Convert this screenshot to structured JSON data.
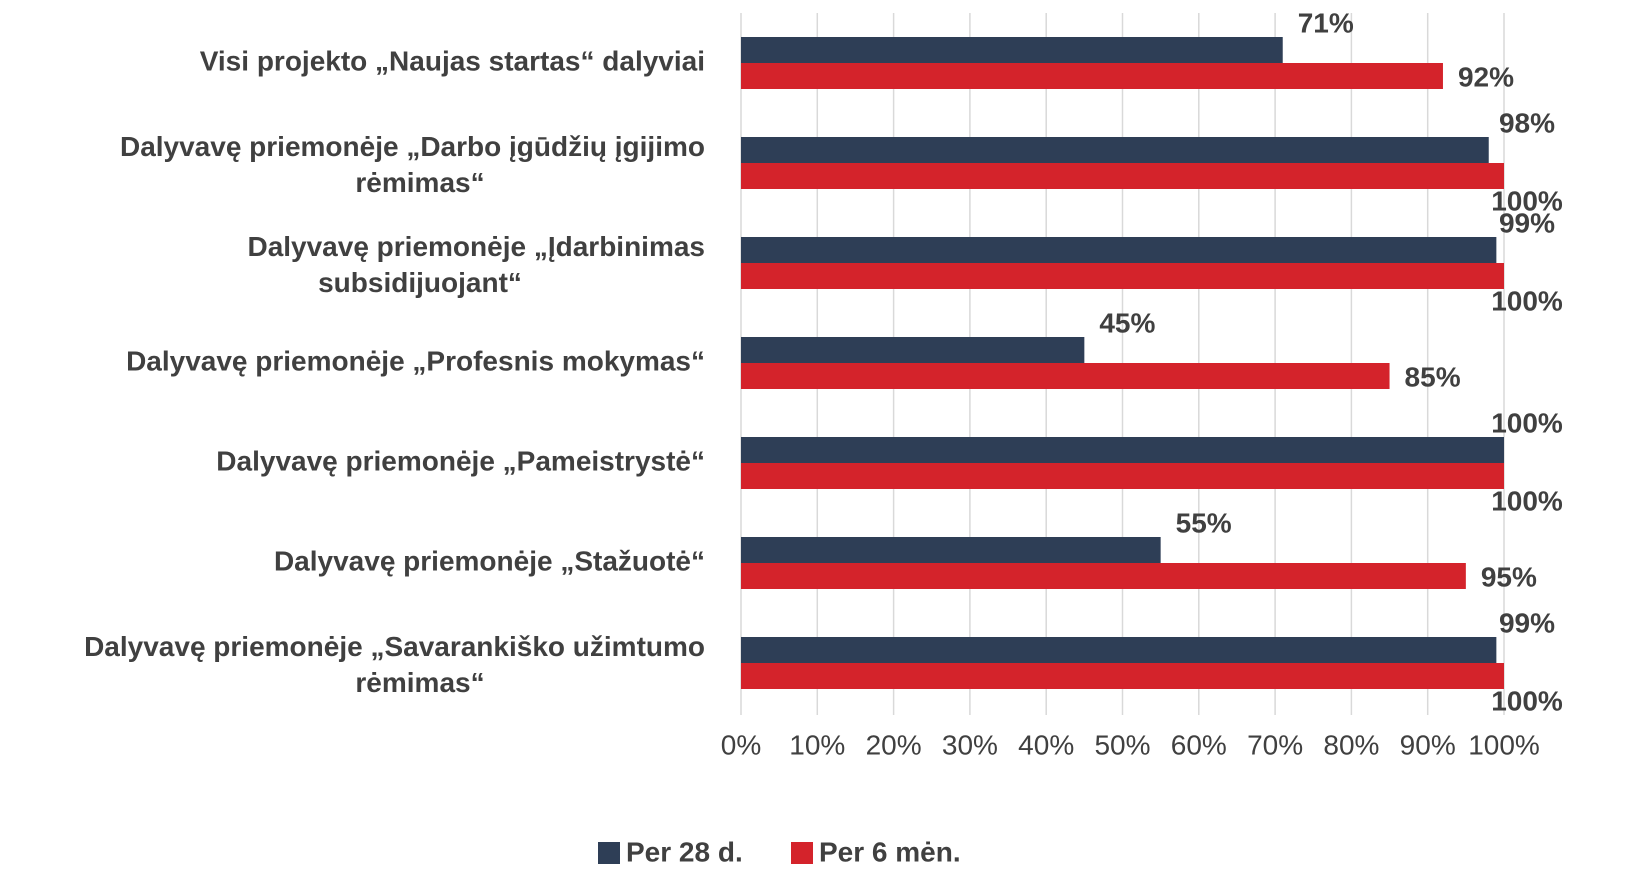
{
  "chart_data": {
    "type": "bar",
    "orientation": "horizontal",
    "categories": [
      "Visi projekto „Naujas startas“ dalyviai",
      "Dalyvavę priemonėje „Darbo įgūdžių įgijimo\nrėmimas“",
      "Dalyvavę priemonėje „Įdarbinimas\nsubsidijuojant“",
      "Dalyvavę priemonėje „Profesnis mokymas“",
      "Dalyvavę priemonėje „Pameistrystė“",
      "Dalyvavę priemonėje „Stažuotė“",
      "Dalyvavę priemonėje „Savarankiško užimtumo\nrėmimas“"
    ],
    "series": [
      {
        "name": "Per 28 d.",
        "color": "#2e3e56",
        "values": [
          71,
          98,
          99,
          45,
          100,
          55,
          99
        ],
        "value_labels": [
          "71%",
          "98%",
          "99%",
          "45%",
          "100%",
          "55%",
          "99%"
        ]
      },
      {
        "name": "Per 6 mėn.",
        "color": "#d4232b",
        "values": [
          92,
          100,
          100,
          85,
          100,
          95,
          100
        ],
        "value_labels": [
          "92%",
          "100%",
          "100%",
          "85%",
          "100%",
          "95%",
          "100%"
        ]
      }
    ],
    "xlim": [
      0,
      100
    ],
    "xticks": [
      {
        "value": 0,
        "label": "0%"
      },
      {
        "value": 10,
        "label": "10%"
      },
      {
        "value": 20,
        "label": "20%"
      },
      {
        "value": 30,
        "label": "30%"
      },
      {
        "value": 40,
        "label": "40%"
      },
      {
        "value": 50,
        "label": "50%"
      },
      {
        "value": 60,
        "label": "60%"
      },
      {
        "value": 70,
        "label": "70%"
      },
      {
        "value": 80,
        "label": "80%"
      },
      {
        "value": 90,
        "label": "90%"
      },
      {
        "value": 100,
        "label": "100%"
      }
    ],
    "grid": true,
    "legend": "bottom"
  }
}
